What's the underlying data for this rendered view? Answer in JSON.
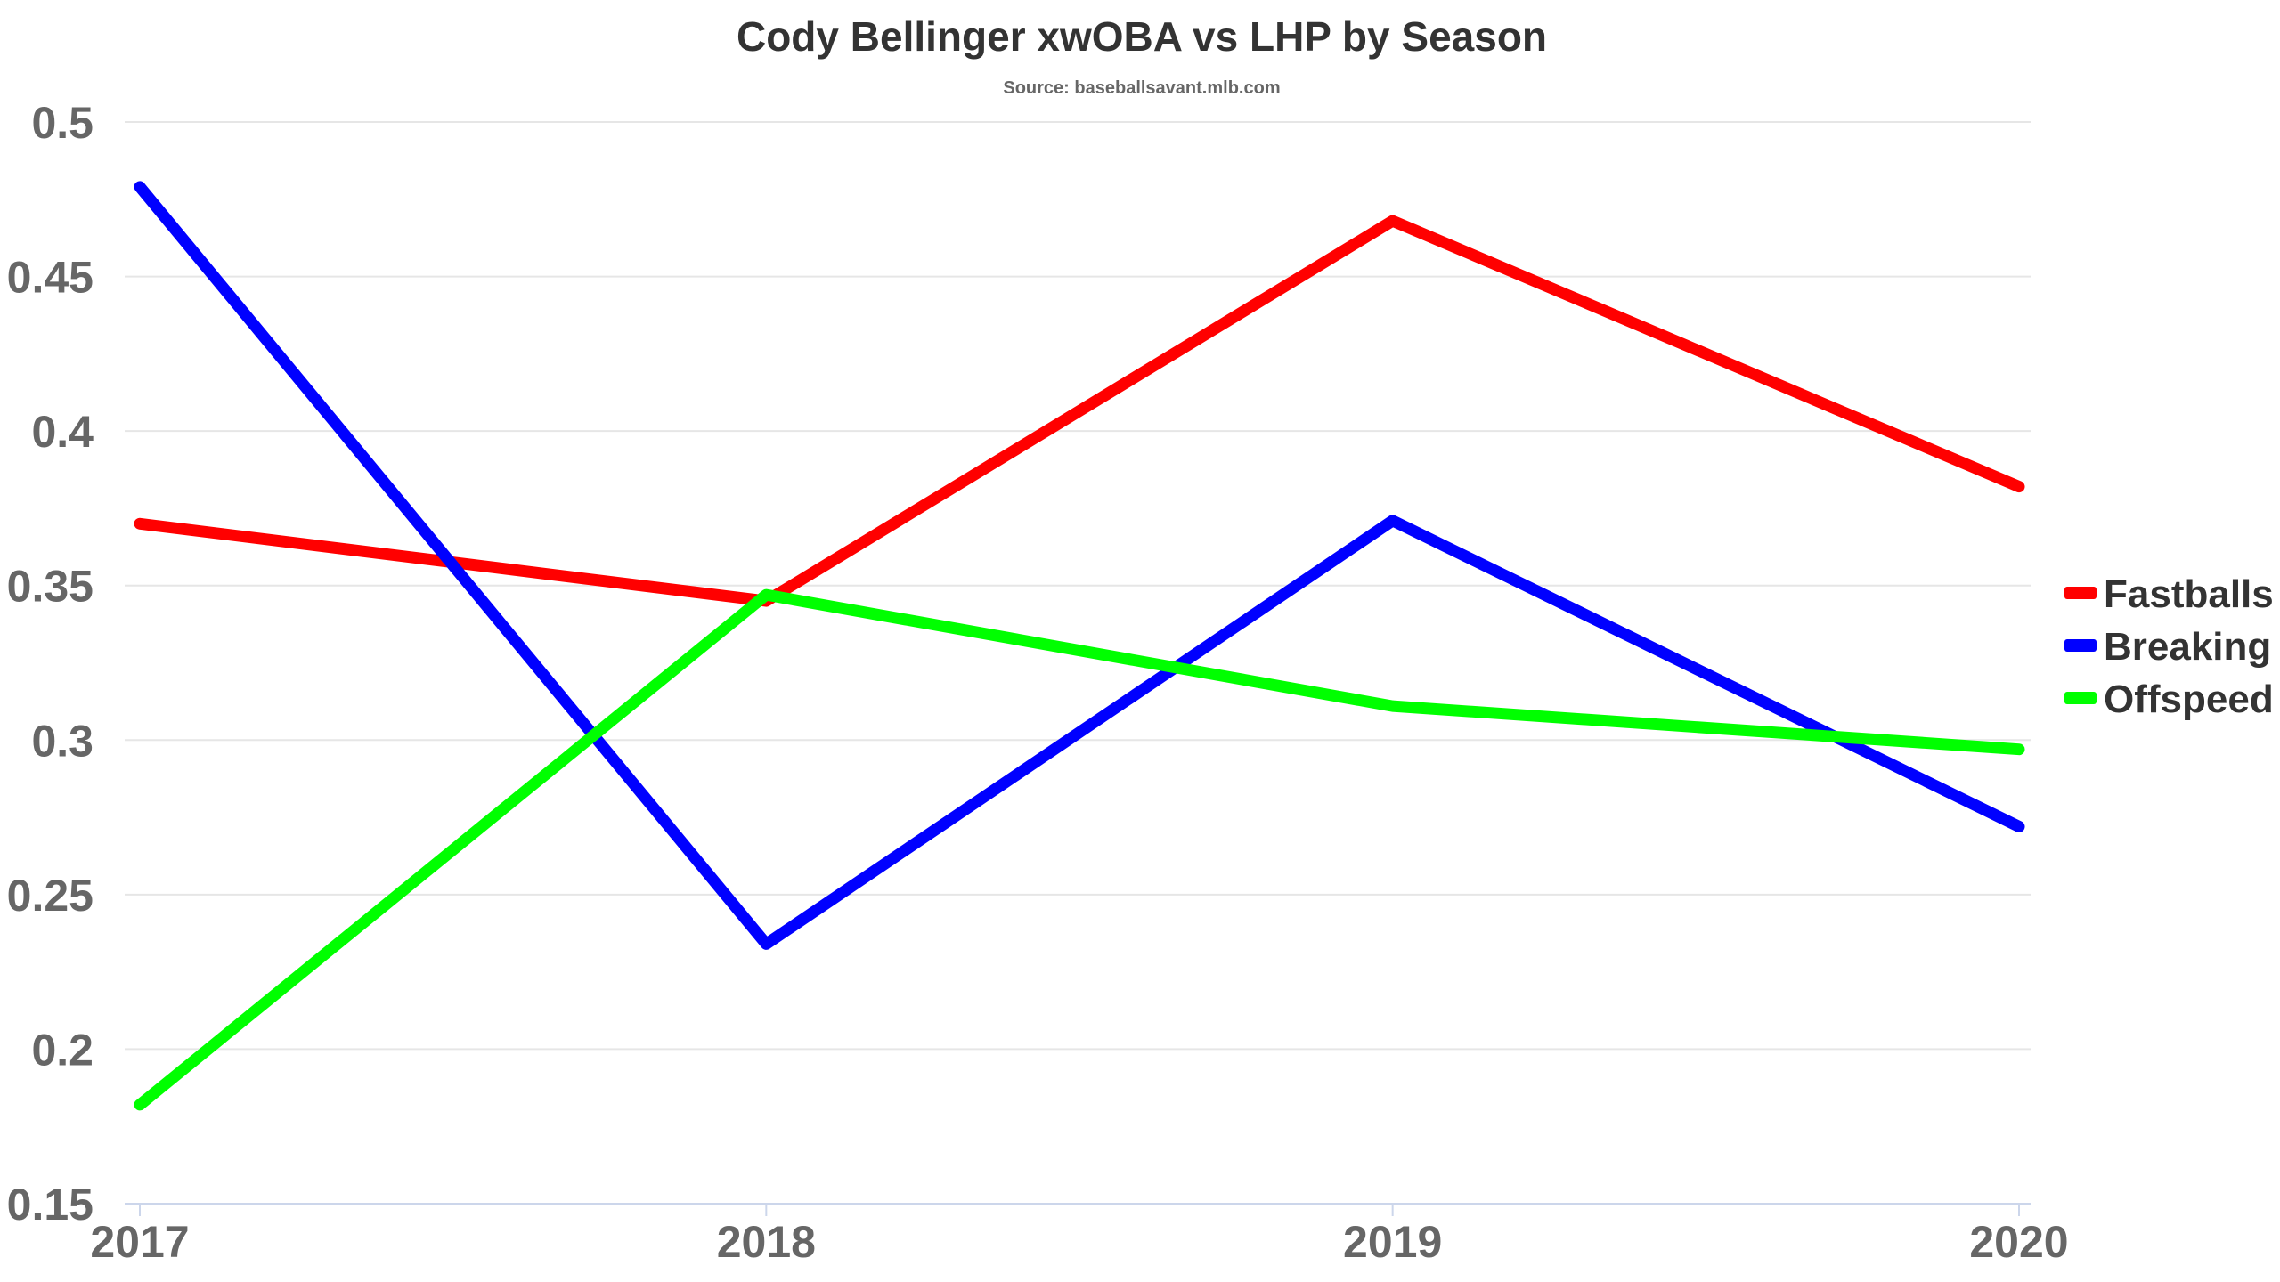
{
  "chart_data": {
    "type": "line",
    "title": "Cody Bellinger xwOBA vs LHP by Season",
    "subtitle": "Source: baseballsavant.mlb.com",
    "xlabel": "",
    "ylabel": "",
    "categories": [
      "2017",
      "2018",
      "2019",
      "2020"
    ],
    "ylim": [
      0.15,
      0.5
    ],
    "yticks": [
      0.15,
      0.2,
      0.25,
      0.3,
      0.35,
      0.4,
      0.45,
      0.5
    ],
    "ytick_labels": [
      "0.15",
      "0.2",
      "0.25",
      "0.3",
      "0.35",
      "0.4",
      "0.45",
      "0.5"
    ],
    "grid": true,
    "legend_position": "right",
    "series": [
      {
        "name": "Fastballs",
        "color": "#ff0000",
        "values": [
          0.37,
          0.345,
          0.468,
          0.382
        ]
      },
      {
        "name": "Breaking",
        "color": "#0000ff",
        "values": [
          0.479,
          0.234,
          0.371,
          0.272
        ]
      },
      {
        "name": "Offspeed",
        "color": "#00ff00",
        "values": [
          0.182,
          0.347,
          0.311,
          0.297
        ]
      }
    ]
  }
}
